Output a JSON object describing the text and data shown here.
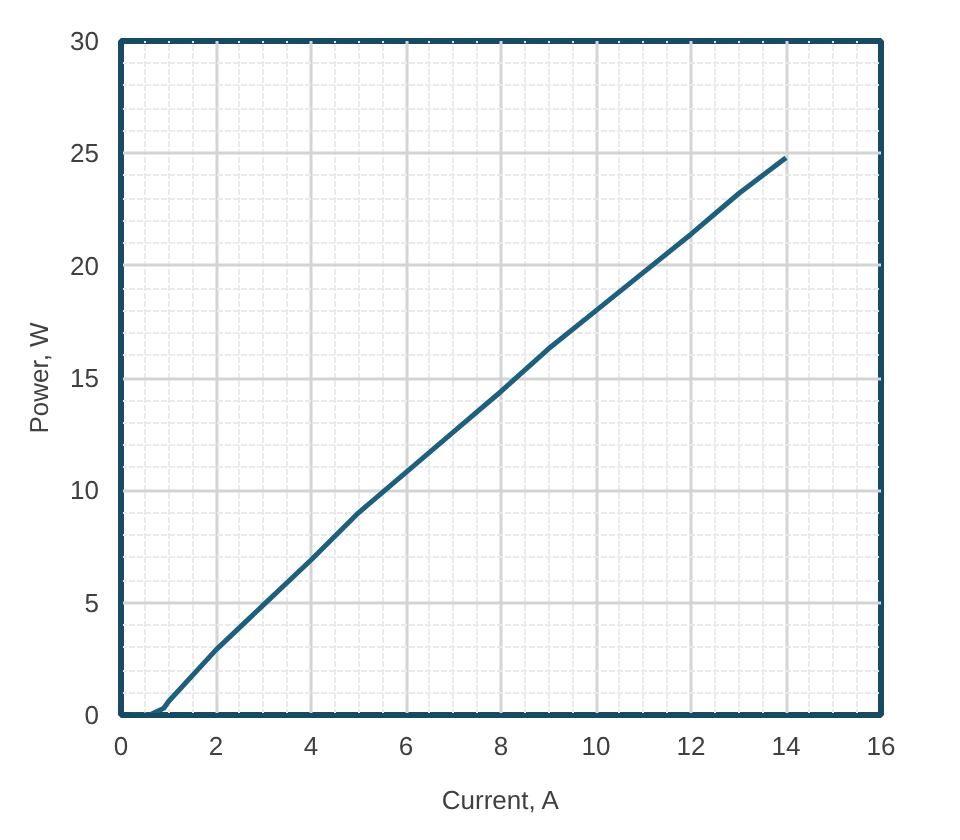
{
  "chart_data": {
    "type": "line",
    "xlabel": "Current, A",
    "ylabel": "Power, W",
    "x": [
      0.2,
      0.6,
      0.9,
      1,
      2,
      3,
      4,
      5,
      6,
      7,
      8,
      9,
      10,
      11,
      12,
      13,
      14
    ],
    "series": [
      {
        "color": "#1d5f7c",
        "values": [
          0,
          0,
          0.3,
          0.6,
          2.9,
          4.9,
          6.9,
          9,
          10.8,
          12.6,
          14.4,
          16.3,
          18,
          19.7,
          21.4,
          23.2,
          24.8
        ]
      }
    ],
    "xlim": [
      0,
      16
    ],
    "ylim": [
      0,
      30
    ],
    "xticks": [
      0,
      2,
      4,
      6,
      8,
      10,
      12,
      14,
      16
    ],
    "yticks": [
      0,
      5,
      10,
      15,
      20,
      25,
      30
    ],
    "grid": true,
    "marker": "none",
    "line_style": "solid"
  }
}
